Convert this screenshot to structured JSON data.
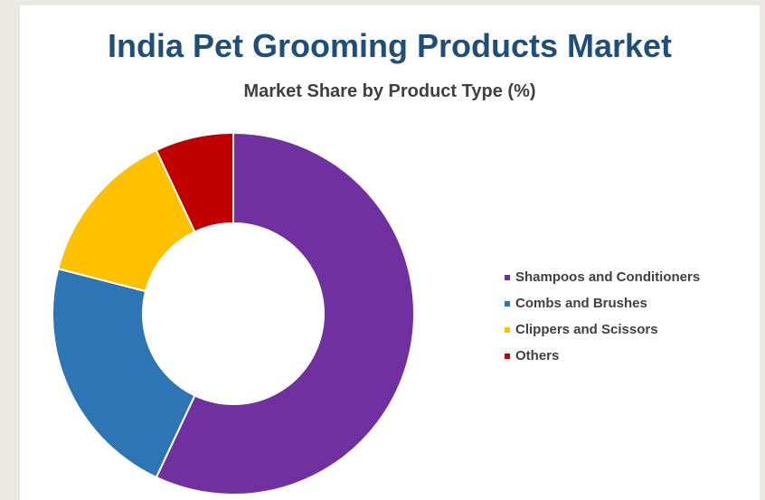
{
  "chart_data": {
    "type": "pie",
    "style": "donut",
    "title": "India Pet Grooming Products Market",
    "subtitle": "Market Share by Product Type (%)",
    "legend_position": "right",
    "categories": [
      "Shampoos and Conditioners",
      "Combs and Brushes",
      "Clippers and Scissors",
      "Others"
    ],
    "values": [
      57,
      22,
      14,
      7
    ],
    "colors": [
      "#7030a0",
      "#2e75b6",
      "#ffc000",
      "#c00000"
    ]
  }
}
